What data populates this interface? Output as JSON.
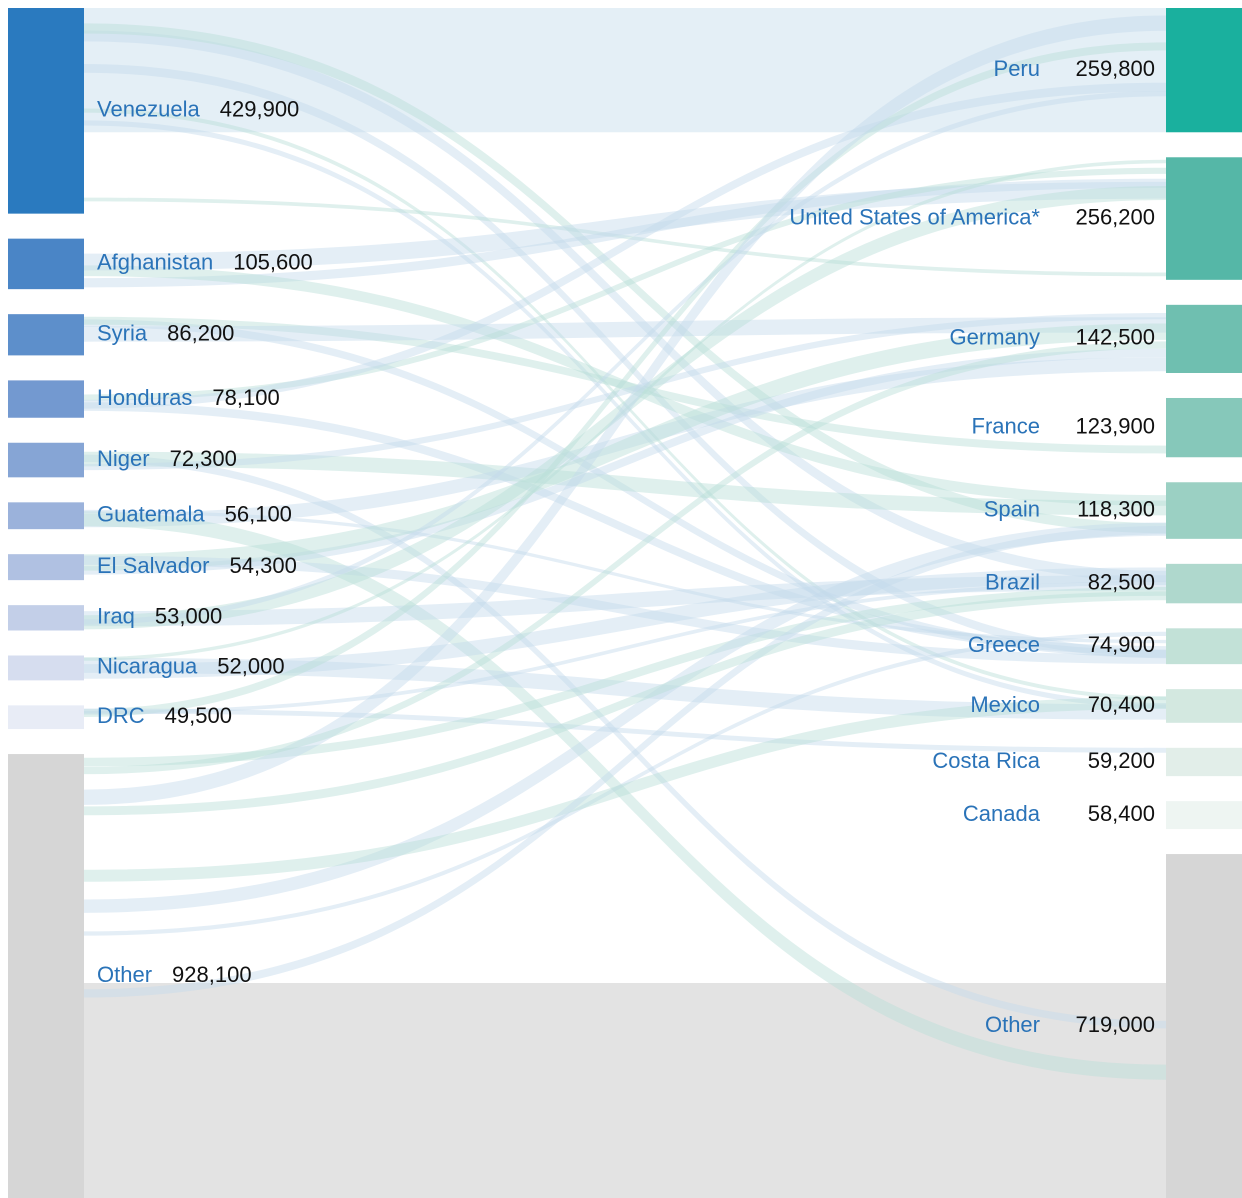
{
  "chart_data": {
    "type": "sankey",
    "sources": {
      "names": [
        "Venezuela",
        "Afghanistan",
        "Syria",
        "Honduras",
        "Niger",
        "Guatemala",
        "El Salvador",
        "Iraq",
        "Nicaragua",
        "DRC",
        "Other"
      ],
      "values": [
        429900,
        105600,
        86200,
        78100,
        72300,
        56100,
        54300,
        53000,
        52000,
        49500,
        928100
      ],
      "value_labels": [
        "429,900",
        "105,600",
        "86,200",
        "78,100",
        "72,300",
        "56,100",
        "54,300",
        "53,000",
        "52,000",
        "49,500",
        "928,100"
      ],
      "colors": [
        "#2a7abf",
        "#4a85c6",
        "#5d8fcb",
        "#7399d0",
        "#86a5d5",
        "#9bb2db",
        "#b0c1e2",
        "#c3cfe8",
        "#d6ddef",
        "#e8ecf6",
        "#d6d6d6"
      ]
    },
    "targets": {
      "names": [
        "Peru",
        "United States of America*",
        "Germany",
        "France",
        "Spain",
        "Brazil",
        "Greece",
        "Mexico",
        "Costa Rica",
        "Canada",
        "Other"
      ],
      "values": [
        259800,
        256200,
        142500,
        123900,
        118300,
        82500,
        74900,
        70400,
        59200,
        58400,
        719000
      ],
      "value_labels": [
        "259,800",
        "256,200",
        "142,500",
        "123,900",
        "118,300",
        "82,500",
        "74,900",
        "70,400",
        "59,200",
        "58,400",
        "719,000"
      ],
      "colors": [
        "#1ab09e",
        "#55b7a7",
        "#6fbfb0",
        "#86c8ba",
        "#9bd0c3",
        "#afd8cd",
        "#c2e1d7",
        "#d3e8e0",
        "#e2eee9",
        "#eef5f2",
        "#d6d6d6"
      ]
    }
  }
}
